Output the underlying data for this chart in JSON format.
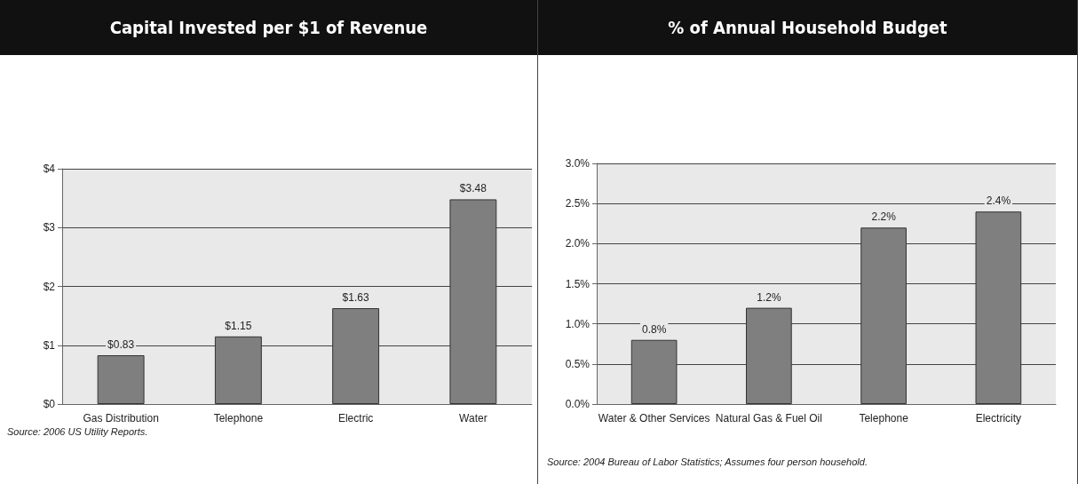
{
  "chart_data": [
    {
      "type": "bar",
      "title": "Capital Invested per $1 of Revenue",
      "categories": [
        "Gas Distribution",
        "Telephone",
        "Electric",
        "Water"
      ],
      "values": [
        0.83,
        1.15,
        1.63,
        3.48
      ],
      "value_labels": [
        "$0.83",
        "$1.15",
        "$1.63",
        "$3.48"
      ],
      "color": "#7f7f7f",
      "ylim": [
        0,
        4
      ],
      "yticks": [
        {
          "value": 0,
          "label": "$0"
        },
        {
          "value": 1,
          "label": "$1"
        },
        {
          "value": 2,
          "label": "$2"
        },
        {
          "value": 3,
          "label": "$3"
        },
        {
          "value": 4,
          "label": "$4"
        }
      ],
      "grid": "y",
      "annotations": [
        "Source: 2006 US Utility  Reports."
      ]
    },
    {
      "type": "bar",
      "title": "% of Annual Household Budget",
      "categories": [
        "Water & Other Services",
        "Natural Gas & Fuel Oil",
        "Telephone",
        "Electricity"
      ],
      "values": [
        0.8,
        1.2,
        2.2,
        2.4
      ],
      "value_labels": [
        "0.8%",
        "1.2%",
        "2.2%",
        "2.4%"
      ],
      "color": "#7f7f7f",
      "ylim": [
        0,
        3
      ],
      "yticks": [
        {
          "value": 0,
          "label": "0.0%"
        },
        {
          "value": 0.5,
          "label": "0.5%"
        },
        {
          "value": 1,
          "label": "1.0%"
        },
        {
          "value": 1.5,
          "label": "1.5%"
        },
        {
          "value": 2,
          "label": "2.0%"
        },
        {
          "value": 2.5,
          "label": "2.5%"
        },
        {
          "value": 3,
          "label": "3.0%"
        }
      ],
      "grid": "y",
      "annotations": [
        "Source: 2004 Bureau of Labor Statistics;  Assumes four person household."
      ]
    }
  ]
}
